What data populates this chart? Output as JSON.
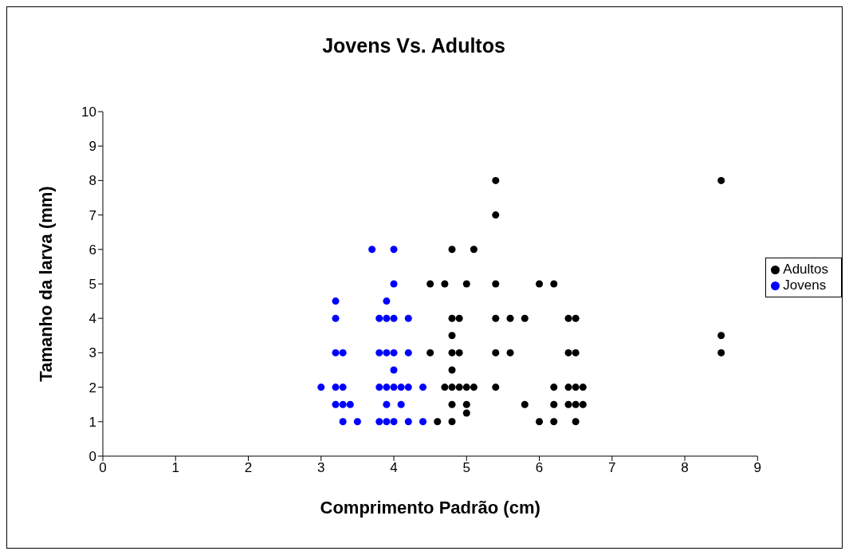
{
  "chart_data": {
    "type": "scatter",
    "title": "Jovens Vs. Adultos",
    "xlabel": "Comprimento Padrão (cm)",
    "ylabel": "Tamanho da larva (mm)",
    "xlim": [
      0,
      9
    ],
    "xticks": [
      0,
      1,
      2,
      3,
      4,
      5,
      6,
      7,
      8,
      9
    ],
    "ylim": [
      0,
      10
    ],
    "yticks": [
      0,
      1,
      2,
      3,
      4,
      5,
      6,
      7,
      8,
      9,
      10
    ],
    "grid": false,
    "legend": "right",
    "marker": "circle",
    "series": [
      {
        "name": "Adultos",
        "color": "#000000",
        "x": [
          5.4,
          8.5,
          5.4,
          4.8,
          5.1,
          4.5,
          4.7,
          5.0,
          5.4,
          6.0,
          6.2,
          4.8,
          4.9,
          5.4,
          5.6,
          5.8,
          6.4,
          6.5,
          4.8,
          8.5,
          4.5,
          4.8,
          4.9,
          5.4,
          5.6,
          6.4,
          6.5,
          8.5,
          4.8,
          4.7,
          4.8,
          4.9,
          5.0,
          5.1,
          5.4,
          6.2,
          6.4,
          6.5,
          6.6,
          4.8,
          5.0,
          5.8,
          6.2,
          6.4,
          6.5,
          6.6,
          5.0,
          4.6,
          4.8,
          6.0,
          6.2,
          6.5
        ],
        "values": [
          8,
          8,
          7,
          6,
          6,
          5,
          5,
          5,
          5,
          5,
          5,
          4,
          4,
          4,
          4,
          4,
          4,
          4,
          3.5,
          3.5,
          3,
          3,
          3,
          3,
          3,
          3,
          3,
          3,
          2.5,
          2,
          2,
          2,
          2,
          2,
          2,
          2,
          2,
          2,
          2,
          1.5,
          1.5,
          1.5,
          1.5,
          1.5,
          1.5,
          1.5,
          1.25,
          1,
          1,
          1,
          1,
          1
        ]
      },
      {
        "name": "Jovens",
        "color": "#0000ff",
        "x": [
          3.7,
          4.0,
          4.0,
          3.2,
          3.9,
          3.2,
          3.8,
          3.9,
          4.0,
          4.2,
          3.2,
          3.3,
          3.8,
          3.9,
          4.0,
          4.2,
          4.0,
          3.0,
          3.2,
          3.3,
          3.8,
          3.9,
          4.0,
          4.1,
          4.2,
          4.4,
          3.2,
          3.3,
          3.4,
          3.9,
          4.1,
          3.3,
          3.5,
          3.8,
          3.9,
          4.0,
          4.2,
          4.4
        ],
        "values": [
          6,
          6,
          5,
          4.5,
          4.5,
          4,
          4,
          4,
          4,
          4,
          3,
          3,
          3,
          3,
          3,
          3,
          2.5,
          2,
          2,
          2,
          2,
          2,
          2,
          2,
          2,
          2,
          1.5,
          1.5,
          1.5,
          1.5,
          1.5,
          1,
          1,
          1,
          1,
          1,
          1,
          1
        ]
      }
    ]
  }
}
